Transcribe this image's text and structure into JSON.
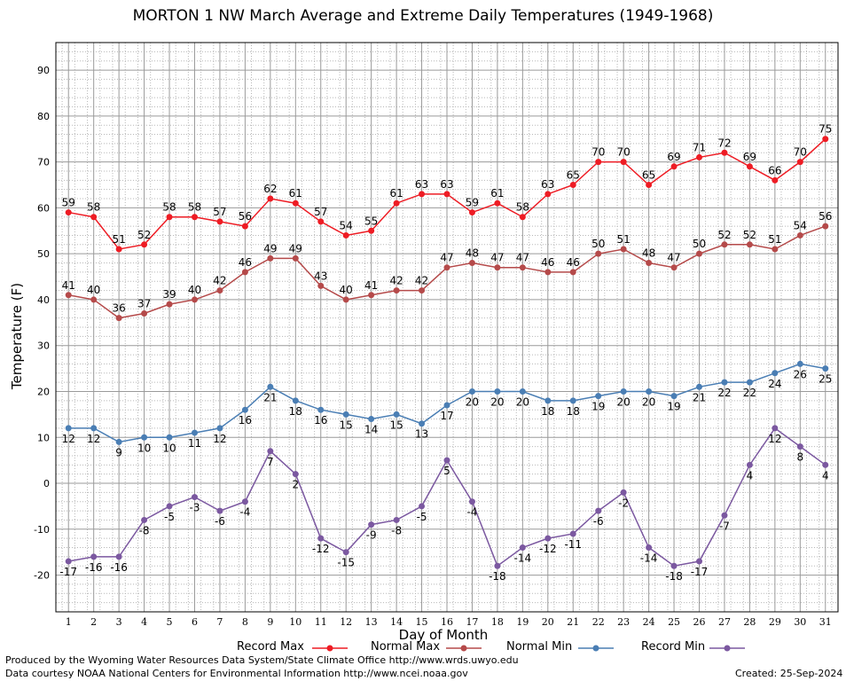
{
  "chart_data": {
    "type": "line",
    "title": "MORTON 1 NW March Average and Extreme Daily Temperatures (1949-1968)",
    "xlabel": "Day of Month",
    "ylabel": "Temperature (F)",
    "x": [
      1,
      2,
      3,
      4,
      5,
      6,
      7,
      8,
      9,
      10,
      11,
      12,
      13,
      14,
      15,
      16,
      17,
      18,
      19,
      20,
      21,
      22,
      23,
      24,
      25,
      26,
      27,
      28,
      29,
      30,
      31
    ],
    "xlim": [
      0.5,
      31.5
    ],
    "ylim": [
      -28,
      96
    ],
    "yticks": [
      -20,
      -10,
      0,
      10,
      20,
      30,
      40,
      50,
      60,
      70,
      80,
      90
    ],
    "grid": true,
    "legend": "bottom",
    "series": [
      {
        "name": "Record Max",
        "color": "#ee1c24",
        "label_pos": "above",
        "values": [
          59,
          58,
          51,
          52,
          58,
          58,
          57,
          56,
          62,
          61,
          57,
          54,
          55,
          61,
          63,
          63,
          59,
          61,
          58,
          63,
          65,
          70,
          70,
          65,
          69,
          71,
          72,
          69,
          66,
          70,
          75
        ]
      },
      {
        "name": "Normal Max",
        "color": "#b54a4a",
        "label_pos": "above",
        "values": [
          41,
          40,
          36,
          37,
          39,
          40,
          42,
          46,
          49,
          49,
          43,
          40,
          41,
          42,
          42,
          47,
          48,
          47,
          47,
          46,
          46,
          50,
          51,
          48,
          47,
          50,
          52,
          52,
          51,
          54,
          56
        ]
      },
      {
        "name": "Normal Min",
        "color": "#4a7eb4",
        "label_pos": "below",
        "values": [
          12,
          12,
          9,
          10,
          10,
          11,
          12,
          16,
          21,
          18,
          16,
          15,
          14,
          15,
          13,
          17,
          20,
          20,
          20,
          18,
          18,
          19,
          20,
          20,
          19,
          21,
          22,
          22,
          24,
          26,
          25
        ]
      },
      {
        "name": "Record Min",
        "color": "#7b58a0",
        "label_pos": "below",
        "values": [
          -17,
          -16,
          -16,
          -8,
          -5,
          -3,
          -6,
          -4,
          7,
          2,
          -12,
          -15,
          -9,
          -8,
          -5,
          5,
          -4,
          -18,
          -14,
          -12,
          -11,
          -6,
          -2,
          -14,
          -18,
          -17,
          -7,
          4,
          12,
          8,
          4
        ]
      }
    ]
  },
  "footer": {
    "produced_by": "Produced by the Wyoming Water Resources Data System/State Climate Office http://www.wrds.uwyo.edu",
    "courtesy": "Data courtesy NOAA National Centers for Environmental Information http://www.ncei.noaa.gov",
    "created": "Created:  25-Sep-2024"
  }
}
